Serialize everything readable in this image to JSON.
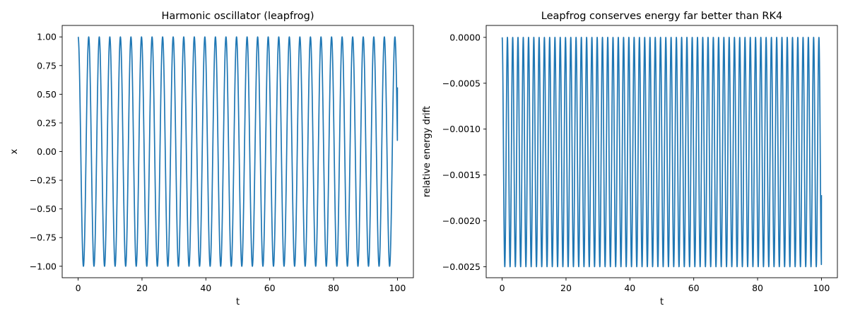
{
  "chart_data": [
    {
      "type": "line",
      "title": "Harmonic oscillator (leapfrog)",
      "xlabel": "t",
      "ylabel": "x",
      "xlim": [
        -5,
        105
      ],
      "ylim": [
        -1.1,
        1.1
      ],
      "xticks": [
        0,
        20,
        40,
        60,
        80,
        100
      ],
      "xtick_labels": [
        "0",
        "20",
        "40",
        "60",
        "80",
        "100"
      ],
      "yticks": [
        1.0,
        0.75,
        0.5,
        0.25,
        0.0,
        -0.25,
        -0.5,
        -0.75,
        -1.0
      ],
      "ytick_labels": [
        "1.00",
        "0.75",
        "0.50",
        "0.25",
        "0.00",
        "−0.25",
        "−0.50",
        "−0.75",
        "−1.00"
      ],
      "grid": false,
      "series": [
        {
          "color": "#1f77b4",
          "x_range": [
            0,
            100
          ],
          "function": "cos",
          "amplitude": 1.0,
          "omega": 1.9,
          "last_value": 0.56
        }
      ]
    },
    {
      "type": "line",
      "title": "Leapfrog conserves energy far better than RK4",
      "xlabel": "t",
      "ylabel": "relative energy drift",
      "xlim": [
        -5,
        105
      ],
      "ylim": [
        -0.00262,
        0.00013
      ],
      "xticks": [
        0,
        20,
        40,
        60,
        80,
        100
      ],
      "xtick_labels": [
        "0",
        "20",
        "40",
        "60",
        "80",
        "100"
      ],
      "yticks": [
        0.0,
        -0.0005,
        -0.001,
        -0.0015,
        -0.002,
        -0.0025
      ],
      "ytick_labels": [
        "0.0000",
        "−0.0005",
        "−0.0010",
        "−0.0015",
        "−0.0020",
        "−0.0025"
      ],
      "grid": false,
      "series": [
        {
          "color": "#1f77b4",
          "x_range": [
            0,
            100
          ],
          "function": "-A*sin^2",
          "amplitude": 0.0025,
          "omega": 1.9,
          "last_value": -0.00172
        }
      ]
    }
  ]
}
